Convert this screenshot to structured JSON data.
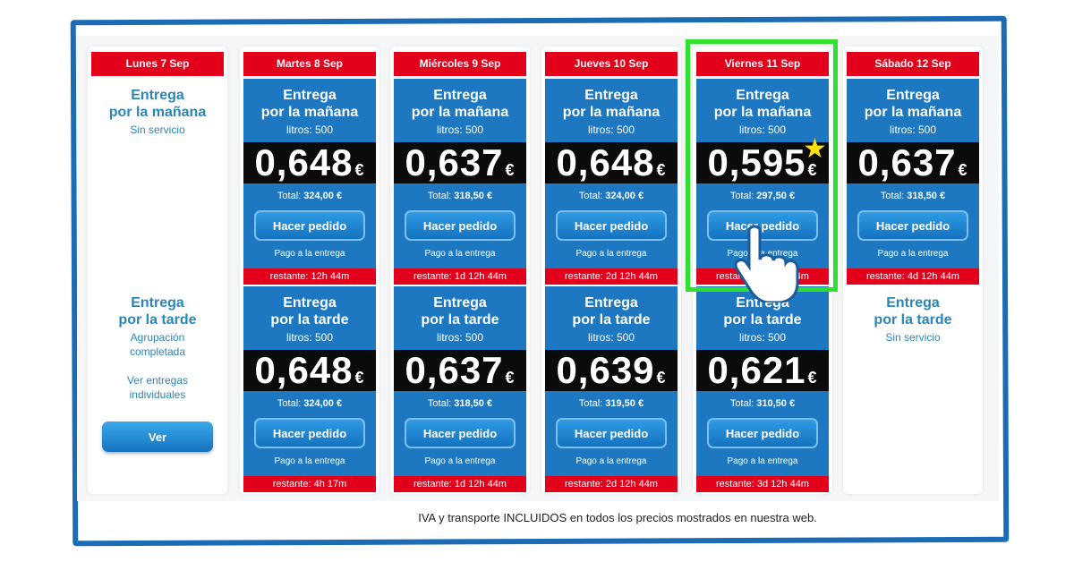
{
  "colors": {
    "accent_blue": "#1d78c1",
    "header_red": "#e3001b",
    "highlight_green": "#2fe02f",
    "star_yellow": "#ffe000"
  },
  "days": [
    {
      "label": "Lunes 7 Sep",
      "morning": {
        "available": false,
        "title1": "Entrega",
        "title2": "por la mañana",
        "status": "Sin servicio"
      },
      "afternoon": {
        "available": false,
        "title1": "Entrega",
        "title2": "por la tarde",
        "status": "Agrupación completada",
        "note": "Ver entregas individuales",
        "button": "Ver"
      }
    },
    {
      "label": "Martes 8 Sep",
      "morning": {
        "available": true,
        "title1": "Entrega",
        "title2": "por la mañana",
        "litros": "litros: 500",
        "price": "0,648",
        "currency": "€",
        "total_label": "Total:",
        "total": "324,00 €",
        "button": "Hacer pedido",
        "payment": "Pago a la entrega",
        "remaining": "restante: 12h 44m"
      },
      "afternoon": {
        "available": true,
        "title1": "Entrega",
        "title2": "por la tarde",
        "litros": "litros: 500",
        "price": "0,648",
        "currency": "€",
        "total_label": "Total:",
        "total": "324,00 €",
        "button": "Hacer pedido",
        "payment": "Pago a la entrega",
        "remaining": "restante: 4h 17m"
      }
    },
    {
      "label": "Miércoles 9 Sep",
      "morning": {
        "available": true,
        "title1": "Entrega",
        "title2": "por la mañana",
        "litros": "litros: 500",
        "price": "0,637",
        "currency": "€",
        "total_label": "Total:",
        "total": "318,50 €",
        "button": "Hacer pedido",
        "payment": "Pago a la entrega",
        "remaining": "restante: 1d 12h 44m"
      },
      "afternoon": {
        "available": true,
        "title1": "Entrega",
        "title2": "por la tarde",
        "litros": "litros: 500",
        "price": "0,637",
        "currency": "€",
        "total_label": "Total:",
        "total": "318,50 €",
        "button": "Hacer pedido",
        "payment": "Pago a la entrega",
        "remaining": "restante: 1d 12h 44m"
      }
    },
    {
      "label": "Jueves 10 Sep",
      "morning": {
        "available": true,
        "title1": "Entrega",
        "title2": "por la mañana",
        "litros": "litros: 500",
        "price": "0,648",
        "currency": "€",
        "total_label": "Total:",
        "total": "324,00 €",
        "button": "Hacer pedido",
        "payment": "Pago a la entrega",
        "remaining": "restante: 2d 12h 44m"
      },
      "afternoon": {
        "available": true,
        "title1": "Entrega",
        "title2": "por la tarde",
        "litros": "litros: 500",
        "price": "0,639",
        "currency": "€",
        "total_label": "Total:",
        "total": "319,50 €",
        "button": "Hacer pedido",
        "payment": "Pago a la entrega",
        "remaining": "restante: 2d 12h 44m"
      }
    },
    {
      "label": "Viernes 11 Sep",
      "highlighted": true,
      "morning": {
        "available": true,
        "best_price": true,
        "title1": "Entrega",
        "title2": "por la mañana",
        "litros": "litros: 500",
        "price": "0,595",
        "currency": "€",
        "total_label": "Total:",
        "total": "297,50 €",
        "button": "Hacer pedido",
        "payment": "Pago a la entrega",
        "remaining": "restante: 3d 12h 44m"
      },
      "afternoon": {
        "available": true,
        "title1": "Entrega",
        "title2": "por la tarde",
        "litros": "litros: 500",
        "price": "0,621",
        "currency": "€",
        "total_label": "Total:",
        "total": "310,50 €",
        "button": "Hacer pedido",
        "payment": "Pago a la entrega",
        "remaining": "restante: 3d 12h 44m"
      }
    },
    {
      "label": "Sábado 12 Sep",
      "morning": {
        "available": true,
        "title1": "Entrega",
        "title2": "por la mañana",
        "litros": "litros: 500",
        "price": "0,637",
        "currency": "€",
        "total_label": "Total:",
        "total": "318,50 €",
        "button": "Hacer pedido",
        "payment": "Pago a la entrega",
        "remaining": "restante: 4d 12h 44m"
      },
      "afternoon": {
        "available": false,
        "title1": "Entrega",
        "title2": "por la tarde",
        "status": "Sin servicio"
      }
    }
  ],
  "footer": "IVA y transporte INCLUIDOS en todos los precios mostrados en nuestra web.",
  "icons": {
    "best": "star-icon",
    "cursor": "hand-pointer-icon"
  }
}
